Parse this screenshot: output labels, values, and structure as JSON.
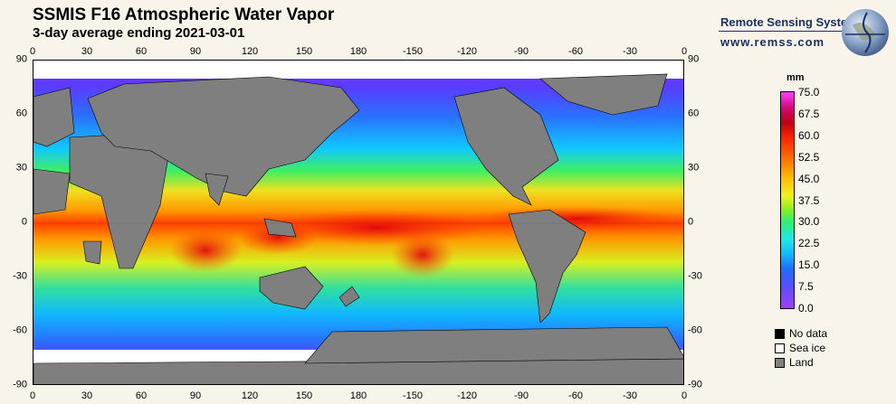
{
  "header": {
    "title": "SSMIS F16 Atmospheric Water Vapor",
    "subtitle": "3-day average ending 2021-03-01"
  },
  "brand": {
    "name": "Remote Sensing Systems",
    "url": "www.remss.com"
  },
  "axes": {
    "top_ticks": [
      "0",
      "30",
      "60",
      "90",
      "120",
      "150",
      "180",
      "-150",
      "-120",
      "-90",
      "-60",
      "-30",
      "0"
    ],
    "bottom_ticks": [
      "0",
      "30",
      "60",
      "90",
      "120",
      "150",
      "180",
      "-150",
      "-120",
      "-90",
      "-60",
      "-30",
      "0"
    ],
    "left_ticks": [
      "90",
      "60",
      "30",
      "0",
      "-30",
      "-60",
      "-90"
    ],
    "right_ticks": [
      "90",
      "60",
      "30",
      "0",
      "-30",
      "-60",
      "-90"
    ]
  },
  "colorbar": {
    "unit": "mm",
    "labels": [
      "75.0",
      "67.5",
      "60.0",
      "52.5",
      "45.0",
      "37.5",
      "30.0",
      "22.5",
      "15.0",
      "7.5",
      "0.0"
    ]
  },
  "legend": [
    {
      "label": "No data",
      "color": "#000000"
    },
    {
      "label": "Sea ice",
      "color": "#ffffff"
    },
    {
      "label": "Land",
      "color": "#808080"
    }
  ]
}
